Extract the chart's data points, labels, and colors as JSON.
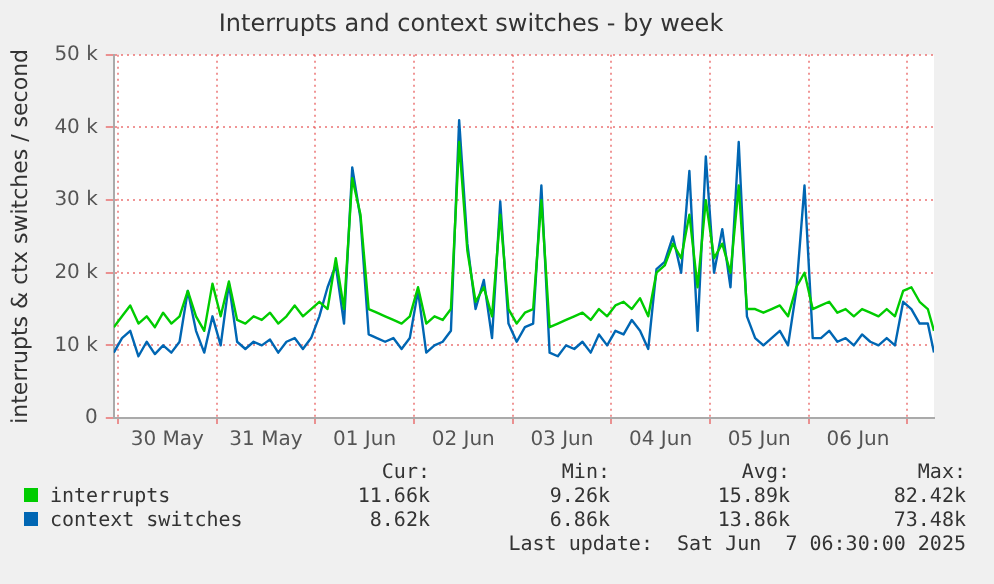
{
  "chart_data": {
    "type": "line",
    "title": "Interrupts and context switches - by week",
    "ylabel": "interrupts & ctx switches / second",
    "x": [
      "2025-05-29T23:00",
      "2025-05-30T01:00",
      "2025-05-30T03:00",
      "2025-05-30T05:00",
      "2025-05-30T07:00",
      "2025-05-30T09:00",
      "2025-05-30T11:00",
      "2025-05-30T13:00",
      "2025-05-30T15:00",
      "2025-05-30T17:00",
      "2025-05-30T19:00",
      "2025-05-30T21:00",
      "2025-05-30T23:00",
      "2025-05-31T01:00",
      "2025-05-31T03:00",
      "2025-05-31T05:00",
      "2025-05-31T07:00",
      "2025-05-31T09:00",
      "2025-05-31T11:00",
      "2025-05-31T13:00",
      "2025-05-31T15:00",
      "2025-05-31T17:00",
      "2025-05-31T19:00",
      "2025-05-31T21:00",
      "2025-05-31T23:00",
      "2025-06-01T01:00",
      "2025-06-01T03:00",
      "2025-06-01T05:00",
      "2025-06-01T07:00",
      "2025-06-01T09:00",
      "2025-06-01T11:00",
      "2025-06-01T13:00",
      "2025-06-01T15:00",
      "2025-06-01T17:00",
      "2025-06-01T19:00",
      "2025-06-01T21:00",
      "2025-06-01T23:00",
      "2025-06-02T01:00",
      "2025-06-02T03:00",
      "2025-06-02T05:00",
      "2025-06-02T07:00",
      "2025-06-02T09:00",
      "2025-06-02T11:00",
      "2025-06-02T13:00",
      "2025-06-02T15:00",
      "2025-06-02T17:00",
      "2025-06-02T19:00",
      "2025-06-02T21:00",
      "2025-06-02T23:00",
      "2025-06-03T01:00",
      "2025-06-03T03:00",
      "2025-06-03T05:00",
      "2025-06-03T07:00",
      "2025-06-03T09:00",
      "2025-06-03T11:00",
      "2025-06-03T13:00",
      "2025-06-03T15:00",
      "2025-06-03T17:00",
      "2025-06-03T19:00",
      "2025-06-03T21:00",
      "2025-06-03T23:00",
      "2025-06-04T01:00",
      "2025-06-04T03:00",
      "2025-06-04T05:00",
      "2025-06-04T07:00",
      "2025-06-04T09:00",
      "2025-06-04T11:00",
      "2025-06-04T13:00",
      "2025-06-04T15:00",
      "2025-06-04T17:00",
      "2025-06-04T19:00",
      "2025-06-04T21:00",
      "2025-06-04T23:00",
      "2025-06-05T01:00",
      "2025-06-05T03:00",
      "2025-06-05T05:00",
      "2025-06-05T07:00",
      "2025-06-05T09:00",
      "2025-06-05T11:00",
      "2025-06-05T13:00",
      "2025-06-05T15:00",
      "2025-06-05T17:00",
      "2025-06-05T19:00",
      "2025-06-05T21:00",
      "2025-06-05T23:00",
      "2025-06-06T01:00",
      "2025-06-06T03:00",
      "2025-06-06T05:00",
      "2025-06-06T07:00",
      "2025-06-06T09:00",
      "2025-06-06T11:00",
      "2025-06-06T13:00",
      "2025-06-06T15:00",
      "2025-06-06T17:00",
      "2025-06-06T19:00",
      "2025-06-06T21:00",
      "2025-06-06T23:00",
      "2025-06-07T01:00",
      "2025-06-07T03:00",
      "2025-06-07T05:00",
      "2025-06-07T06:30"
    ],
    "series": [
      {
        "name": "interrupts",
        "color": "#00cc00",
        "values": [
          12500,
          14000,
          15500,
          13000,
          14000,
          12500,
          14500,
          13000,
          14000,
          17500,
          14000,
          12000,
          18500,
          14000,
          18800,
          13500,
          13000,
          14000,
          13500,
          14500,
          13000,
          14000,
          15500,
          14000,
          15000,
          16000,
          15000,
          22000,
          15000,
          33000,
          28000,
          15000,
          14500,
          14000,
          13500,
          13000,
          14000,
          18000,
          13000,
          14000,
          13500,
          15000,
          38000,
          23000,
          16000,
          18000,
          14000,
          28000,
          15000,
          13000,
          14500,
          15000,
          30000,
          12500,
          13000,
          13500,
          14000,
          14500,
          13500,
          15000,
          14000,
          15500,
          16000,
          15000,
          16500,
          14000,
          20000,
          21000,
          24000,
          22000,
          28000,
          18000,
          30000,
          22000,
          24000,
          20000,
          32000,
          15000,
          15000,
          14500,
          15000,
          15500,
          14000,
          18000,
          20000,
          15000,
          15500,
          16000,
          14500,
          15000,
          14000,
          15000,
          14500,
          14000,
          15000,
          14000,
          17500,
          18000,
          16000,
          15000,
          12000
        ]
      },
      {
        "name": "context switches",
        "color": "#0066b3",
        "values": [
          9000,
          11000,
          12000,
          8500,
          10500,
          8800,
          10000,
          9000,
          10500,
          17500,
          12000,
          9000,
          14000,
          10000,
          18500,
          10500,
          9500,
          10500,
          10000,
          10800,
          9000,
          10500,
          11000,
          9500,
          11000,
          14000,
          18000,
          21000,
          13000,
          34500,
          27500,
          11500,
          11000,
          10500,
          11000,
          9500,
          11000,
          17500,
          9000,
          10000,
          10500,
          12000,
          41000,
          24000,
          15000,
          19000,
          11000,
          29800,
          13000,
          10500,
          12500,
          13000,
          32000,
          9000,
          8500,
          10000,
          9500,
          10500,
          9000,
          11500,
          10000,
          12000,
          11500,
          13500,
          12000,
          9500,
          20500,
          21500,
          25000,
          20000,
          34000,
          12000,
          36000,
          20000,
          26000,
          18000,
          38000,
          14000,
          11000,
          10000,
          11000,
          12000,
          10000,
          17500,
          32000,
          11000,
          11000,
          12000,
          10500,
          11000,
          10000,
          11500,
          10500,
          10000,
          11000,
          10000,
          16000,
          15000,
          13000,
          13000,
          9000
        ]
      }
    ],
    "xlim": [
      "2025-05-29T23:00",
      "2025-06-07T06:30"
    ],
    "xticks": [
      {
        "value": "2025-05-30T00:00",
        "label": null
      },
      {
        "value": "2025-05-30T12:00",
        "label": "30 May"
      },
      {
        "value": "2025-05-31T00:00",
        "label": null
      },
      {
        "value": "2025-05-31T12:00",
        "label": "31 May"
      },
      {
        "value": "2025-06-01T00:00",
        "label": null
      },
      {
        "value": "2025-06-01T12:00",
        "label": "01 Jun"
      },
      {
        "value": "2025-06-02T00:00",
        "label": null
      },
      {
        "value": "2025-06-02T12:00",
        "label": "02 Jun"
      },
      {
        "value": "2025-06-03T00:00",
        "label": null
      },
      {
        "value": "2025-06-03T12:00",
        "label": "03 Jun"
      },
      {
        "value": "2025-06-04T00:00",
        "label": null
      },
      {
        "value": "2025-06-04T12:00",
        "label": "04 Jun"
      },
      {
        "value": "2025-06-05T00:00",
        "label": null
      },
      {
        "value": "2025-06-05T12:00",
        "label": "05 Jun"
      },
      {
        "value": "2025-06-06T00:00",
        "label": null
      },
      {
        "value": "2025-06-06T12:00",
        "label": "06 Jun"
      },
      {
        "value": "2025-06-07T00:00",
        "label": null
      }
    ],
    "ylim": [
      0,
      50000
    ],
    "yticks": [
      {
        "value": 0,
        "label": "0"
      },
      {
        "value": 10000,
        "label": "10 k"
      },
      {
        "value": 20000,
        "label": "20 k"
      },
      {
        "value": 30000,
        "label": "30 k"
      },
      {
        "value": 40000,
        "label": "40 k"
      },
      {
        "value": 50000,
        "label": "50 k"
      }
    ],
    "grid": true,
    "legend": "bottom left",
    "marker": "none",
    "line_style": "solid",
    "annotations": [
      "Cur:",
      "Min:",
      "Avg:",
      "Max:",
      "11.66k",
      "9.26k",
      "15.89k",
      "82.42k",
      "8.62k",
      "6.86k",
      "13.86k",
      "73.48k",
      "Last update:  Sat Jun  7 06:30:00 2025"
    ]
  }
}
